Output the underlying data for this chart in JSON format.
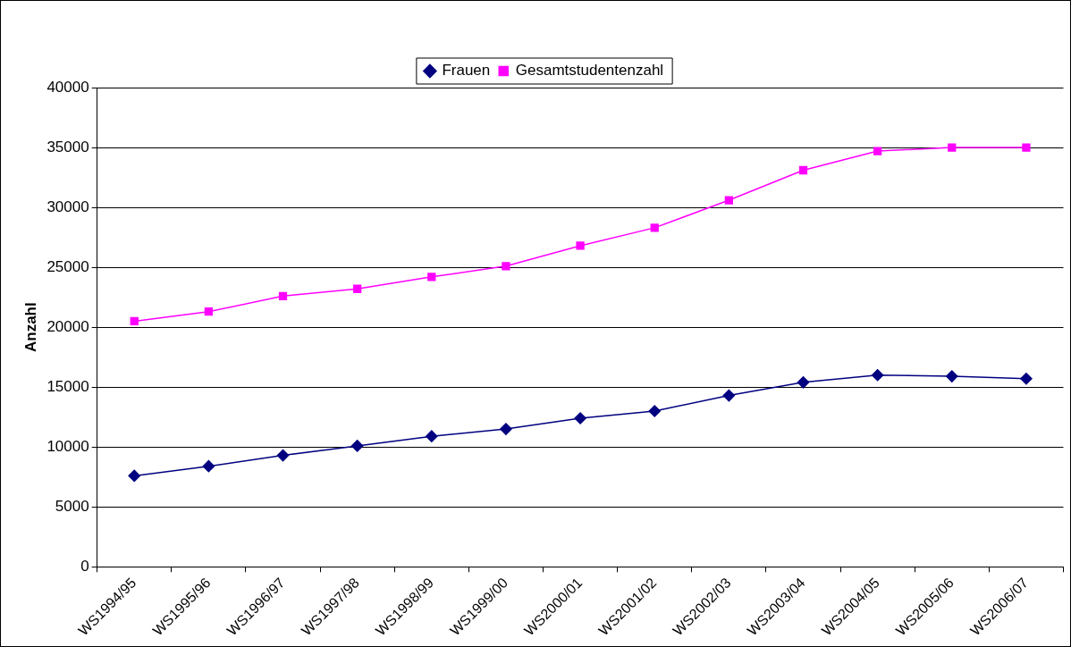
{
  "chart_data": {
    "type": "line",
    "ylabel": "Anzahl",
    "categories": [
      "WS1994/95",
      "WS1995/96",
      "WS1996/97",
      "WS1997/98",
      "WS1998/99",
      "WS1999/00",
      "WS2000/01",
      "WS2001/02",
      "WS2002/03",
      "WS2003/04",
      "WS2004/05",
      "WS2005/06",
      "WS2006/07"
    ],
    "series": [
      {
        "name": "Frauen",
        "color": "#000080",
        "marker": "diamond",
        "values": [
          7600,
          8400,
          9300,
          10100,
          10900,
          11500,
          12400,
          13000,
          14300,
          15400,
          16000,
          15900,
          15700
        ]
      },
      {
        "name": "Gesamtstudentenzahl",
        "color": "#ff00ff",
        "marker": "square",
        "values": [
          20500,
          21300,
          22600,
          23200,
          24200,
          25100,
          26800,
          28300,
          30600,
          33100,
          34700,
          35000,
          35000
        ]
      }
    ],
    "ylim": [
      0,
      40000
    ],
    "yticks": [
      0,
      5000,
      10000,
      15000,
      20000,
      25000,
      30000,
      35000,
      40000
    ],
    "grid": "y",
    "legend": "top",
    "line_style": "solid"
  }
}
